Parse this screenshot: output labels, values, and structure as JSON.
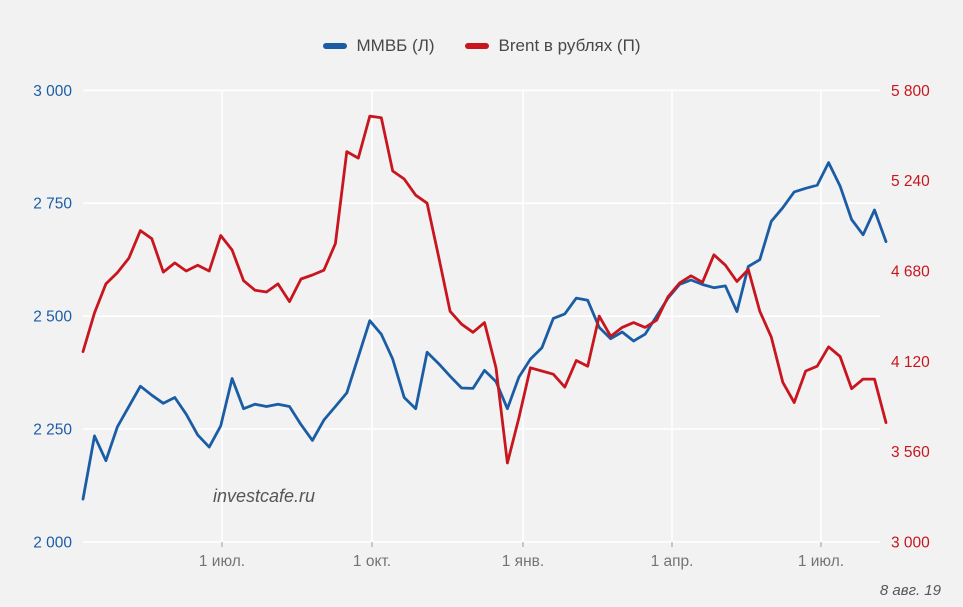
{
  "page": {
    "background": "#f2f2f3"
  },
  "chart_data": {
    "type": "line",
    "title": "",
    "legend_position": "top",
    "grid": true,
    "watermark": "investcafe.ru",
    "date_note": "8 авг. 19",
    "legend": [
      {
        "label": "ММВБ (Л)",
        "color": "#1b5da4"
      },
      {
        "label": "Brent в рублях (П)",
        "color": "#c8161f"
      }
    ],
    "x_ticks": [
      {
        "label": "1 июл.",
        "pos": 0.1731
      },
      {
        "label": "1 окт.",
        "pos": 0.3599
      },
      {
        "label": "1 янв.",
        "pos": 0.5479
      },
      {
        "label": "1 апр.",
        "pos": 0.7335
      },
      {
        "label": "1 июл.",
        "pos": 0.919
      }
    ],
    "left_axis": {
      "min": 2000,
      "max": 3000,
      "color": "#1b5da4",
      "ticks": [
        {
          "v": 2000,
          "label": "2 000"
        },
        {
          "v": 2250,
          "label": "2 250"
        },
        {
          "v": 2500,
          "label": "2 500"
        },
        {
          "v": 2750,
          "label": "2 750"
        },
        {
          "v": 3000,
          "label": "3 000"
        }
      ]
    },
    "right_axis": {
      "min": 3000,
      "max": 5800,
      "color": "#c8161f",
      "ticks": [
        {
          "v": 3000,
          "label": "3 000"
        },
        {
          "v": 3560,
          "label": "3 560"
        },
        {
          "v": 4120,
          "label": "4 120"
        },
        {
          "v": 4680,
          "label": "4 680"
        },
        {
          "v": 5240,
          "label": "5 240"
        },
        {
          "v": 5800,
          "label": "5 800"
        }
      ]
    },
    "series": [
      {
        "name": "ММВБ (Л)",
        "axis": "left",
        "color": "#1b5da4",
        "values": [
          2095,
          2235,
          2180,
          2255,
          2300,
          2345,
          2325,
          2307,
          2320,
          2283,
          2237,
          2210,
          2257,
          2362,
          2295,
          2305,
          2300,
          2305,
          2300,
          2260,
          2225,
          2270,
          2300,
          2330,
          2410,
          2490,
          2460,
          2405,
          2320,
          2295,
          2420,
          2395,
          2367,
          2341,
          2340,
          2380,
          2355,
          2295,
          2365,
          2405,
          2430,
          2495,
          2505,
          2540,
          2535,
          2475,
          2450,
          2465,
          2445,
          2460,
          2500,
          2540,
          2570,
          2580,
          2570,
          2563,
          2567,
          2510,
          2610,
          2625,
          2710,
          2740,
          2775,
          2783,
          2790,
          2840,
          2788,
          2714,
          2680,
          2735,
          2665
        ]
      },
      {
        "name": "Brent в рублях (П)",
        "axis": "right",
        "color": "#c8161f",
        "values": [
          4180,
          4420,
          4600,
          4670,
          4760,
          4930,
          4880,
          4673,
          4730,
          4680,
          4716,
          4680,
          4900,
          4810,
          4620,
          4560,
          4550,
          4600,
          4490,
          4630,
          4655,
          4685,
          4850,
          5420,
          5380,
          5640,
          5630,
          5300,
          5250,
          5150,
          5100,
          4770,
          4430,
          4350,
          4300,
          4360,
          4080,
          3490,
          3770,
          4080,
          4060,
          4040,
          3960,
          4125,
          4090,
          4400,
          4275,
          4330,
          4360,
          4330,
          4375,
          4520,
          4605,
          4650,
          4610,
          4780,
          4716,
          4615,
          4690,
          4430,
          4270,
          3990,
          3865,
          4060,
          4090,
          4210,
          4150,
          3950,
          4010,
          4010,
          3740
        ]
      }
    ]
  }
}
